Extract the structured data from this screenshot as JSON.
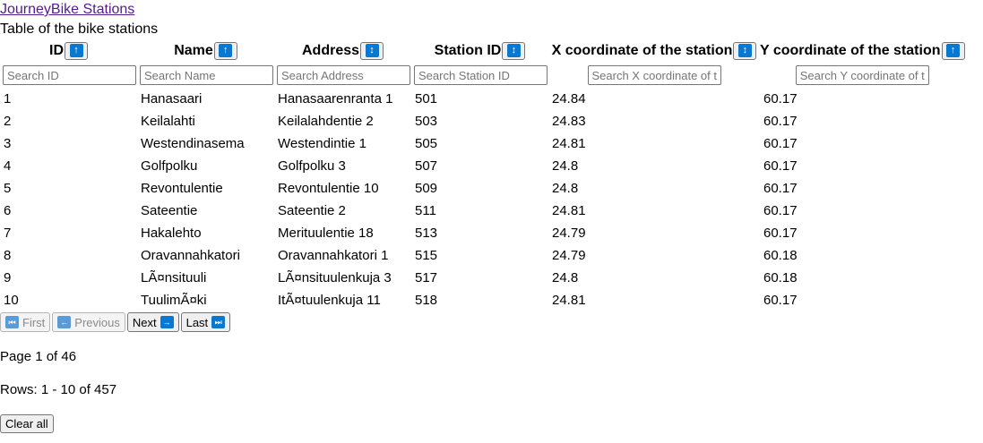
{
  "header": {
    "app_link": "JourneyBike Stations",
    "caption": "Table of the bike stations"
  },
  "colors": {
    "accent": "#0b78d0",
    "link": "#551a8b"
  },
  "table": {
    "columns": [
      {
        "label": "ID",
        "placeholder": "Search ID",
        "sort_icon": "arrow-up-icon",
        "sort_glyph": "↑"
      },
      {
        "label": "Name",
        "placeholder": "Search Name",
        "sort_icon": "arrow-up-icon",
        "sort_glyph": "↑"
      },
      {
        "label": "Address",
        "placeholder": "Search Address",
        "sort_icon": "arrow-up-down-icon",
        "sort_glyph": "↕"
      },
      {
        "label": "Station ID",
        "placeholder": "Search Station ID",
        "sort_icon": "arrow-up-down-icon",
        "sort_glyph": "↕"
      },
      {
        "label": "X coordinate of the station",
        "placeholder": "Search X coordinate of tl",
        "sort_icon": "arrow-up-down-icon",
        "sort_glyph": "↕"
      },
      {
        "label": "Y coordinate of the station",
        "placeholder": "Search Y coordinate of tl",
        "sort_icon": "arrow-up-icon",
        "sort_glyph": "↑"
      }
    ],
    "rows": [
      [
        "1",
        "Hanasaari",
        "Hanasaarenranta 1",
        "501",
        "24.84",
        "60.17"
      ],
      [
        "2",
        "Keilalahti",
        "Keilalahdentie 2",
        "503",
        "24.83",
        "60.17"
      ],
      [
        "3",
        "Westendinasema",
        "Westendintie 1",
        "505",
        "24.81",
        "60.17"
      ],
      [
        "4",
        "Golfpolku",
        "Golfpolku 3",
        "507",
        "24.8",
        "60.17"
      ],
      [
        "5",
        "Revontulentie",
        "Revontulentie 10",
        "509",
        "24.8",
        "60.17"
      ],
      [
        "6",
        "Sateentie",
        "Sateentie 2",
        "511",
        "24.81",
        "60.17"
      ],
      [
        "7",
        "Hakalehto",
        "Merituulentie 18",
        "513",
        "24.79",
        "60.17"
      ],
      [
        "8",
        "Oravannahkatori",
        "Oravannahkatori 1",
        "515",
        "24.79",
        "60.18"
      ],
      [
        "9",
        "LÃ¤nsituuli",
        "LÃ¤nsituulenkuja 3",
        "517",
        "24.8",
        "60.18"
      ],
      [
        "10",
        "TuulimÃ¤ki",
        "ItÃ¤tuulenkuja 11",
        "518",
        "24.81",
        "60.17"
      ]
    ]
  },
  "pagination": {
    "first": {
      "label": "First",
      "icon": "skip-first-icon",
      "glyph": "⏮",
      "disabled": true
    },
    "previous": {
      "label": "Previous",
      "icon": "arrow-left-icon",
      "glyph": "←",
      "disabled": true
    },
    "next": {
      "label": "Next",
      "icon": "arrow-right-icon",
      "glyph": "→",
      "disabled": false
    },
    "last": {
      "label": "Last",
      "icon": "skip-last-icon",
      "glyph": "⏭",
      "disabled": false
    },
    "page_info": "Page 1 of 46",
    "rows_info": "Rows: 1 - 10 of 457"
  },
  "actions": {
    "clear_all": "Clear all"
  }
}
